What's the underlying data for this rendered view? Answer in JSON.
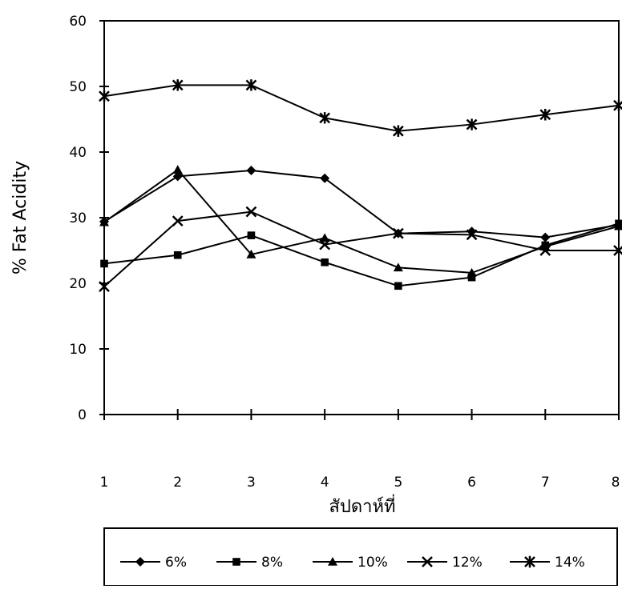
{
  "chart_data": {
    "type": "line",
    "title": "",
    "xlabel": "สัปดาห์ที่",
    "ylabel": "% Fat Acidity",
    "x": [
      1,
      2,
      3,
      4,
      5,
      6,
      7,
      8
    ],
    "x_tick_labels": [
      "1",
      "2",
      "3",
      "4",
      "5",
      "6",
      "7",
      "8"
    ],
    "y_tick_labels": [
      "0",
      "10",
      "20",
      "30",
      "40",
      "50",
      "60"
    ],
    "ylim": [
      0,
      60
    ],
    "xlim": [
      1,
      8
    ],
    "grid": false,
    "legend_position": "bottom",
    "series": [
      {
        "name": "6%",
        "marker": "diamond",
        "values": [
          29.4,
          36.3,
          37.2,
          36.0,
          27.6,
          27.9,
          27.0,
          28.9
        ]
      },
      {
        "name": "8%",
        "marker": "square",
        "values": [
          23.0,
          24.3,
          27.3,
          23.2,
          19.6,
          20.9,
          25.8,
          29.1
        ]
      },
      {
        "name": "10%",
        "marker": "triangle",
        "values": [
          29.3,
          37.3,
          24.4,
          26.9,
          22.4,
          21.6,
          25.6,
          28.7
        ]
      },
      {
        "name": "12%",
        "marker": "x",
        "values": [
          19.5,
          29.5,
          30.9,
          25.9,
          27.6,
          27.4,
          25.0,
          25.0
        ]
      },
      {
        "name": "14%",
        "marker": "star",
        "values": [
          48.5,
          50.2,
          50.2,
          45.2,
          43.2,
          44.2,
          45.7,
          47.1
        ]
      }
    ]
  }
}
